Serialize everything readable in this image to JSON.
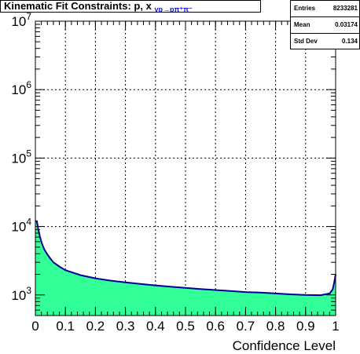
{
  "title": {
    "main": "Kinematic Fit Constraints: p, x",
    "sub": "γp→pπ⁺π⁻"
  },
  "stats": {
    "rows": [
      {
        "label": "Entries",
        "value": "8233281"
      },
      {
        "label": "Mean",
        "value": "0.03174"
      },
      {
        "label": "Std Dev",
        "value": "0.134"
      }
    ]
  },
  "chart_data": {
    "type": "area",
    "xlabel": "Confidence Level",
    "ylabel": "",
    "xlim": [
      0,
      1
    ],
    "ylim": [
      500,
      10000000
    ],
    "yscale": "log",
    "grid": true,
    "x_ticks": [
      "0",
      "0.1",
      "0.2",
      "0.3",
      "0.4",
      "0.5",
      "0.6",
      "0.7",
      "0.8",
      "0.9",
      "1"
    ],
    "y_ticks": [
      {
        "value": 1000,
        "base": "10",
        "exp": "3"
      },
      {
        "value": 10000,
        "base": "10",
        "exp": "4"
      },
      {
        "value": 100000,
        "base": "10",
        "exp": "5"
      },
      {
        "value": 1000000,
        "base": "10",
        "exp": "6"
      },
      {
        "value": 10000000,
        "base": "10",
        "exp": "7"
      }
    ],
    "fill_color": "#33ff99",
    "line_color": "#000099",
    "x": [
      0.005,
      0.01,
      0.015,
      0.02,
      0.025,
      0.03,
      0.04,
      0.05,
      0.06,
      0.08,
      0.1,
      0.15,
      0.2,
      0.25,
      0.3,
      0.35,
      0.4,
      0.45,
      0.5,
      0.55,
      0.6,
      0.65,
      0.7,
      0.75,
      0.8,
      0.85,
      0.9,
      0.95,
      0.98,
      0.99,
      0.995,
      1.0
    ],
    "values": [
      12000,
      9000,
      7200,
      6000,
      5200,
      4600,
      3900,
      3400,
      3000,
      2600,
      2300,
      1950,
      1750,
      1620,
      1530,
      1450,
      1380,
      1320,
      1270,
      1220,
      1180,
      1140,
      1100,
      1080,
      1050,
      1020,
      1000,
      990,
      1050,
      1200,
      1500,
      2000
    ]
  }
}
